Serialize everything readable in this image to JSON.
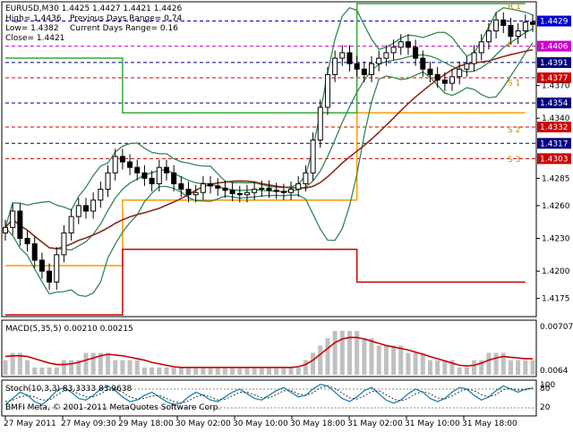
{
  "header": {
    "symbol_line": "EURUSD,M30  1.4425 1.4427 1.4421 1.4426",
    "high": "High= 1.4436",
    "prev_range": "Previous Days Range= 0.74",
    "low": "Low= 1.4382",
    "curr_range": "Current Days Range= 0.16",
    "close": "Close= 1.4421"
  },
  "chart_data": [
    {
      "type": "candlestick",
      "title": "EURUSD,M30",
      "y_range": [
        1.416,
        1.4445
      ],
      "y_ticks": [
        "1.4429",
        "1.4406",
        "1.4391",
        "1.4377",
        "1.4370",
        "1.4354",
        "1.4340",
        "1.4332",
        "1.4317",
        "1.4303",
        "1.4285",
        "1.4260",
        "1.4230",
        "1.4200",
        "1.4175"
      ],
      "x_labels": [
        "27 May 2011",
        "27 May 09:30",
        "29 May 18:00",
        "30 May 02:00",
        "30 May 10:00",
        "30 May 18:00",
        "31 May 02:00",
        "31 May 10:00",
        "31 May 18:00"
      ],
      "price_markers": [
        {
          "value": "1.4429",
          "color": "#0000cc"
        },
        {
          "value": "1.4406",
          "color": "#cc00cc"
        },
        {
          "value": "1.4391",
          "color": "#000080"
        },
        {
          "value": "1.4377",
          "color": "#cc0000"
        },
        {
          "value": "1.4354",
          "color": "#000080"
        },
        {
          "value": "1.4332",
          "color": "#cc0000"
        },
        {
          "value": "1.4317",
          "color": "#000080"
        },
        {
          "value": "1.4303",
          "color": "#cc0000"
        }
      ],
      "pivot_labels": [
        "R 1",
        "P",
        "S 1",
        "S 2",
        "S 3"
      ],
      "close_series": [
        1.424,
        1.4255,
        1.423,
        1.4225,
        1.421,
        1.42,
        1.419,
        1.4215,
        1.4235,
        1.425,
        1.426,
        1.4255,
        1.4265,
        1.4275,
        1.429,
        1.4305,
        1.43,
        1.4295,
        1.429,
        1.4285,
        1.428,
        1.4295,
        1.429,
        1.428,
        1.4275,
        1.427,
        1.4272,
        1.428,
        1.4278,
        1.4276,
        1.4274,
        1.4271,
        1.427,
        1.4272,
        1.4275,
        1.4276,
        1.4274,
        1.4273,
        1.4272,
        1.4275,
        1.428,
        1.429,
        1.432,
        1.435,
        1.438,
        1.4395,
        1.44,
        1.439,
        1.4385,
        1.438,
        1.439,
        1.4395,
        1.44,
        1.4405,
        1.441,
        1.4405,
        1.4395,
        1.4385,
        1.438,
        1.4375,
        1.4372,
        1.4378,
        1.4385,
        1.439,
        1.44,
        1.441,
        1.442,
        1.443,
        1.4425,
        1.4415,
        1.442,
        1.4428,
        1.4426
      ]
    },
    {
      "type": "bar+line",
      "title": "MACD(5,35,5) 0.00210 0.00215",
      "y_ticks": [
        "0.00707",
        "0.0064"
      ],
      "histogram": [
        2,
        3,
        3,
        2,
        1,
        1,
        1,
        1,
        2,
        2,
        2,
        3,
        3,
        3,
        3,
        2,
        2,
        2,
        2,
        1,
        1,
        1,
        1,
        1,
        1,
        1,
        1,
        1,
        1,
        1,
        1,
        1,
        1,
        1,
        1,
        1,
        1,
        1,
        1,
        1,
        1,
        2,
        3,
        4,
        5,
        6,
        6,
        6,
        6,
        5,
        5,
        4,
        4,
        4,
        4,
        3,
        3,
        3,
        2,
        2,
        2,
        2,
        1,
        1,
        2,
        2,
        3,
        3,
        3,
        2,
        2,
        2,
        2
      ],
      "signal": [
        2.5,
        2.6,
        2.6,
        2.5,
        2.2,
        1.9,
        1.6,
        1.4,
        1.4,
        1.5,
        1.7,
        2.0,
        2.3,
        2.6,
        2.8,
        2.7,
        2.6,
        2.4,
        2.2,
        2.0,
        1.7,
        1.5,
        1.3,
        1.1,
        1.0,
        1.0,
        1.0,
        1.0,
        1.0,
        1.0,
        1.0,
        1.0,
        1.0,
        1.0,
        1.0,
        1.0,
        1.0,
        1.0,
        1.0,
        1.0,
        1.1,
        1.4,
        2.0,
        2.8,
        3.6,
        4.4,
        4.9,
        5.1,
        5.1,
        4.9,
        4.6,
        4.3,
        4.0,
        3.8,
        3.6,
        3.4,
        3.1,
        2.8,
        2.5,
        2.2,
        1.9,
        1.6,
        1.3,
        1.2,
        1.3,
        1.6,
        2.0,
        2.3,
        2.5,
        2.4,
        2.3,
        2.2,
        2.2
      ]
    },
    {
      "type": "line",
      "title": "Stoch(10,3,3) 83.3333 83.9638",
      "y_ticks": [
        "100",
        "80",
        "20"
      ],
      "main": [
        30,
        50,
        70,
        60,
        40,
        30,
        50,
        75,
        85,
        70,
        50,
        45,
        60,
        80,
        90,
        75,
        55,
        40,
        45,
        60,
        70,
        55,
        40,
        30,
        35,
        55,
        70,
        60,
        45,
        40,
        55,
        70,
        80,
        65,
        50,
        45,
        60,
        75,
        85,
        70,
        55,
        60,
        80,
        95,
        90,
        70,
        50,
        40,
        55,
        75,
        85,
        65,
        45,
        35,
        45,
        65,
        80,
        70,
        50,
        40,
        50,
        70,
        85,
        80,
        60,
        45,
        55,
        75,
        90,
        80,
        70,
        80,
        83
      ],
      "signal": [
        40,
        45,
        55,
        60,
        55,
        45,
        45,
        60,
        75,
        75,
        65,
        55,
        55,
        65,
        78,
        80,
        70,
        55,
        48,
        50,
        58,
        60,
        50,
        40,
        35,
        42,
        55,
        62,
        55,
        45,
        48,
        58,
        70,
        70,
        62,
        52,
        52,
        62,
        75,
        75,
        65,
        60,
        68,
        85,
        90,
        82,
        67,
        52,
        48,
        58,
        72,
        75,
        62,
        48,
        42,
        50,
        65,
        72,
        65,
        52,
        48,
        58,
        72,
        80,
        75,
        62,
        55,
        62,
        78,
        82,
        77,
        78,
        84
      ]
    }
  ]
}
